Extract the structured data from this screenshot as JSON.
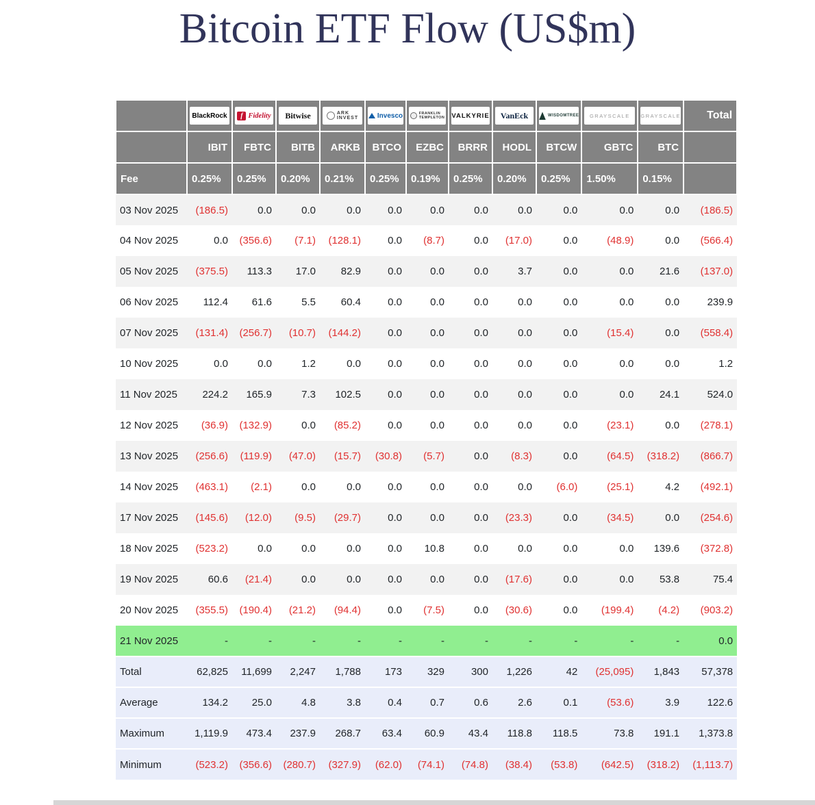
{
  "chart_data": {
    "type": "table",
    "title": "Bitcoin ETF Flow (US$m)",
    "header": {
      "fee_label": "Fee",
      "total_label": "Total"
    },
    "funds": [
      {
        "ticker": "IBIT",
        "fee": "0.25%",
        "brand": "BlackRock"
      },
      {
        "ticker": "FBTC",
        "fee": "0.25%",
        "brand": "Fidelity"
      },
      {
        "ticker": "BITB",
        "fee": "0.20%",
        "brand": "Bitwise"
      },
      {
        "ticker": "ARKB",
        "fee": "0.21%",
        "brand": "ARK INVEST"
      },
      {
        "ticker": "BTCO",
        "fee": "0.25%",
        "brand": "Invesco"
      },
      {
        "ticker": "EZBC",
        "fee": "0.19%",
        "brand": "FRANKLIN TEMPLETON"
      },
      {
        "ticker": "BRRR",
        "fee": "0.25%",
        "brand": "VALKYRIE"
      },
      {
        "ticker": "HODL",
        "fee": "0.20%",
        "brand": "VanEck"
      },
      {
        "ticker": "BTCW",
        "fee": "0.25%",
        "brand": "WISDOMTREE"
      },
      {
        "ticker": "GBTC",
        "fee": "1.50%",
        "brand": "GRAYSCALE"
      },
      {
        "ticker": "BTC",
        "fee": "0.15%",
        "brand": "GRAYSCALE"
      }
    ],
    "rows": [
      {
        "date": "03 Nov 2025",
        "values": [
          "(186.5)",
          "0.0",
          "0.0",
          "0.0",
          "0.0",
          "0.0",
          "0.0",
          "0.0",
          "0.0",
          "0.0",
          "0.0"
        ],
        "total": "(186.5)"
      },
      {
        "date": "04 Nov 2025",
        "values": [
          "0.0",
          "(356.6)",
          "(7.1)",
          "(128.1)",
          "0.0",
          "(8.7)",
          "0.0",
          "(17.0)",
          "0.0",
          "(48.9)",
          "0.0"
        ],
        "total": "(566.4)"
      },
      {
        "date": "05 Nov 2025",
        "values": [
          "(375.5)",
          "113.3",
          "17.0",
          "82.9",
          "0.0",
          "0.0",
          "0.0",
          "3.7",
          "0.0",
          "0.0",
          "21.6"
        ],
        "total": "(137.0)"
      },
      {
        "date": "06 Nov 2025",
        "values": [
          "112.4",
          "61.6",
          "5.5",
          "60.4",
          "0.0",
          "0.0",
          "0.0",
          "0.0",
          "0.0",
          "0.0",
          "0.0"
        ],
        "total": "239.9"
      },
      {
        "date": "07 Nov 2025",
        "values": [
          "(131.4)",
          "(256.7)",
          "(10.7)",
          "(144.2)",
          "0.0",
          "0.0",
          "0.0",
          "0.0",
          "0.0",
          "(15.4)",
          "0.0"
        ],
        "total": "(558.4)"
      },
      {
        "date": "10 Nov 2025",
        "values": [
          "0.0",
          "0.0",
          "1.2",
          "0.0",
          "0.0",
          "0.0",
          "0.0",
          "0.0",
          "0.0",
          "0.0",
          "0.0"
        ],
        "total": "1.2"
      },
      {
        "date": "11 Nov 2025",
        "values": [
          "224.2",
          "165.9",
          "7.3",
          "102.5",
          "0.0",
          "0.0",
          "0.0",
          "0.0",
          "0.0",
          "0.0",
          "24.1"
        ],
        "total": "524.0"
      },
      {
        "date": "12 Nov 2025",
        "values": [
          "(36.9)",
          "(132.9)",
          "0.0",
          "(85.2)",
          "0.0",
          "0.0",
          "0.0",
          "0.0",
          "0.0",
          "(23.1)",
          "0.0"
        ],
        "total": "(278.1)"
      },
      {
        "date": "13 Nov 2025",
        "values": [
          "(256.6)",
          "(119.9)",
          "(47.0)",
          "(15.7)",
          "(30.8)",
          "(5.7)",
          "0.0",
          "(8.3)",
          "0.0",
          "(64.5)",
          "(318.2)"
        ],
        "total": "(866.7)"
      },
      {
        "date": "14 Nov 2025",
        "values": [
          "(463.1)",
          "(2.1)",
          "0.0",
          "0.0",
          "0.0",
          "0.0",
          "0.0",
          "0.0",
          "(6.0)",
          "(25.1)",
          "4.2"
        ],
        "total": "(492.1)"
      },
      {
        "date": "17 Nov 2025",
        "values": [
          "(145.6)",
          "(12.0)",
          "(9.5)",
          "(29.7)",
          "0.0",
          "0.0",
          "0.0",
          "(23.3)",
          "0.0",
          "(34.5)",
          "0.0"
        ],
        "total": "(254.6)"
      },
      {
        "date": "18 Nov 2025",
        "values": [
          "(523.2)",
          "0.0",
          "0.0",
          "0.0",
          "0.0",
          "10.8",
          "0.0",
          "0.0",
          "0.0",
          "0.0",
          "139.6"
        ],
        "total": "(372.8)"
      },
      {
        "date": "19 Nov 2025",
        "values": [
          "60.6",
          "(21.4)",
          "0.0",
          "0.0",
          "0.0",
          "0.0",
          "0.0",
          "(17.6)",
          "0.0",
          "0.0",
          "53.8"
        ],
        "total": "75.4"
      },
      {
        "date": "20 Nov 2025",
        "values": [
          "(355.5)",
          "(190.4)",
          "(21.2)",
          "(94.4)",
          "0.0",
          "(7.5)",
          "0.0",
          "(30.6)",
          "0.0",
          "(199.4)",
          "(4.2)"
        ],
        "total": "(903.2)"
      },
      {
        "date": "21 Nov 2025",
        "values": [
          "-",
          "-",
          "-",
          "-",
          "-",
          "-",
          "-",
          "-",
          "-",
          "-",
          "-"
        ],
        "total": "0.0",
        "highlight": "green"
      }
    ],
    "summary_rows": [
      {
        "label": "Total",
        "values": [
          "62,825",
          "11,699",
          "2,247",
          "1,788",
          "173",
          "329",
          "300",
          "1,226",
          "42",
          "(25,095)",
          "1,843"
        ],
        "total": "57,378"
      },
      {
        "label": "Average",
        "values": [
          "134.2",
          "25.0",
          "4.8",
          "3.8",
          "0.4",
          "0.7",
          "0.6",
          "2.6",
          "0.1",
          "(53.6)",
          "3.9"
        ],
        "total": "122.6"
      },
      {
        "label": "Maximum",
        "values": [
          "1,119.9",
          "473.4",
          "237.9",
          "268.7",
          "63.4",
          "60.9",
          "43.4",
          "118.8",
          "118.5",
          "73.8",
          "191.1"
        ],
        "total": "1,373.8"
      },
      {
        "label": "Minimum",
        "values": [
          "(523.2)",
          "(356.6)",
          "(280.7)",
          "(327.9)",
          "(62.0)",
          "(74.1)",
          "(74.8)",
          "(38.4)",
          "(53.8)",
          "(642.5)",
          "(318.2)"
        ],
        "total": "(1,113.7)"
      }
    ]
  },
  "colors": {
    "negative": "#e03131",
    "header_bg": "#838383",
    "row_alt_bg": "#f2f2f2",
    "green_row_bg": "#90ee90",
    "summary_bg": "#e9edfa",
    "title_color": "#31345a",
    "text_color": "#212529"
  }
}
